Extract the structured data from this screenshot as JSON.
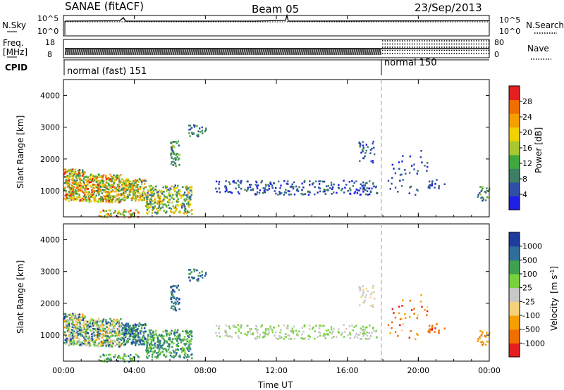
{
  "header": {
    "left": "SANAE (fitACF)",
    "center": "Beam 05",
    "right": "23/Sep/2013"
  },
  "nsky_panel": {
    "left_label": "N.Sky",
    "right_label": "N.Search",
    "left_ticks": [
      "10^5",
      "10^0"
    ],
    "right_ticks": [
      "10^5",
      "10^0"
    ]
  },
  "freq_panel": {
    "left_label_1": "Freq.",
    "left_label_2": "[MHz]",
    "right_label": "Nave",
    "left_ticks": [
      "18",
      "8"
    ],
    "right_ticks": [
      "80",
      "0"
    ]
  },
  "cpid": {
    "label": "CPID",
    "modes": [
      {
        "name": "normal (fast) 151",
        "start_hour": 0
      },
      {
        "name": "normal 150",
        "start_hour": 18
      }
    ]
  },
  "colors": {
    "power": [
      "#1e1ee6",
      "#2f4fa6",
      "#3c7f64",
      "#3fa83f",
      "#a8c832",
      "#f0d200",
      "#f5a000",
      "#f06e00",
      "#e61e1e"
    ],
    "velocity": [
      "#e61e1e",
      "#f06e00",
      "#f5a000",
      "#f5d27a",
      "#c8c8c8",
      "#78d23c",
      "#3fa050",
      "#2f6e9a",
      "#1e3ca0"
    ]
  },
  "chart_data": [
    {
      "type": "heatmap",
      "title": "",
      "ylabel": "Slant Range [km]",
      "xlabel": "",
      "xlim": [
        0,
        24
      ],
      "ylim": [
        180,
        4500
      ],
      "yticks": [
        "1000",
        "2000",
        "3000",
        "4000"
      ],
      "xtick_hours": [
        0,
        4,
        8,
        12,
        16,
        20,
        24
      ],
      "colorbar": {
        "label": "Power [dB]",
        "ticks": [
          "28",
          "24",
          "20",
          "16",
          "12",
          "8",
          "4"
        ]
      },
      "marker_hour": 18
    },
    {
      "type": "heatmap",
      "title": "",
      "ylabel": "Slant Range [km]",
      "xlabel": "Time UT",
      "xlim": [
        0,
        24
      ],
      "ylim": [
        180,
        4500
      ],
      "yticks": [
        "1000",
        "2000",
        "3000",
        "4000"
      ],
      "xticks": [
        "00:00",
        "04:00",
        "08:00",
        "12:00",
        "16:00",
        "20:00",
        "00:00"
      ],
      "xtick_hours": [
        0,
        4,
        8,
        12,
        16,
        20,
        24
      ],
      "colorbar": {
        "label": "Velocity",
        "unit": "[m s",
        "unit_exp": "-1",
        "unit_end": "]",
        "ticks": [
          "1000",
          "500",
          "100",
          "25",
          "-25",
          "-100",
          "-500",
          "-1000"
        ]
      },
      "marker_hour": 18
    }
  ]
}
